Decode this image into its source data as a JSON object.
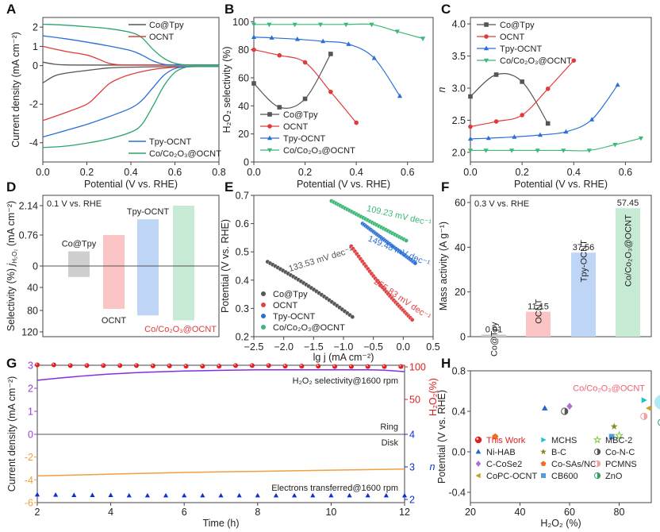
{
  "panel_labels": [
    "A",
    "B",
    "C",
    "D",
    "E",
    "F",
    "G",
    "H"
  ],
  "chart_data": [
    {
      "id": "A",
      "type": "line",
      "title": "",
      "xlabel": "Potential (V vs. RHE)",
      "ylabel": "Current density (mA cm⁻²)",
      "xlim": [
        0,
        0.8
      ],
      "ylim": [
        -5,
        2.5
      ],
      "xticks": [
        "0.0",
        "0.2",
        "0.4",
        "0.6",
        "0.8"
      ],
      "yticks": [
        "-4",
        "-2",
        "0",
        "1",
        "2"
      ],
      "ytick_values": [
        -4,
        -2,
        0,
        1,
        2
      ],
      "xtick_values": [
        0,
        0.2,
        0.4,
        0.6,
        0.8
      ],
      "legend_top": [
        "Co@Tpy",
        "OCNT"
      ],
      "legend_bottom": [
        "Tpy-OCNT",
        "Co/Co₂O₃@OCNT"
      ],
      "series": [
        {
          "name": "Co@Tpy",
          "color": "#555555",
          "ring": {
            "x": [
              0,
              0.05,
              0.1,
              0.2,
              0.3,
              0.4,
              0.5,
              0.6,
              0.7,
              0.8
            ],
            "y": [
              0.18,
              0.08,
              0.04,
              0.03,
              0.03,
              0.03,
              0.03,
              0.03,
              0.03,
              0.03
            ]
          },
          "disk": {
            "x": [
              0,
              0.05,
              0.1,
              0.2,
              0.3,
              0.4,
              0.5,
              0.6,
              0.7,
              0.8
            ],
            "y": [
              -0.9,
              -0.55,
              -0.4,
              -0.25,
              -0.12,
              -0.08,
              -0.06,
              -0.05,
              -0.05,
              -0.05
            ]
          }
        },
        {
          "name": "OCNT",
          "color": "#e03b3b",
          "ring": {
            "x": [
              0,
              0.1,
              0.2,
              0.25,
              0.3,
              0.35,
              0.4,
              0.5,
              0.6,
              0.7,
              0.8
            ],
            "y": [
              1.0,
              0.75,
              0.55,
              0.35,
              0.12,
              0.04,
              0.03,
              0.03,
              0.03,
              0.03,
              0.03
            ]
          },
          "disk": {
            "x": [
              0,
              0.1,
              0.2,
              0.25,
              0.3,
              0.35,
              0.4,
              0.5,
              0.6,
              0.7,
              0.8
            ],
            "y": [
              -2.85,
              -2.45,
              -2.0,
              -1.5,
              -0.95,
              -0.65,
              -0.45,
              -0.2,
              -0.08,
              -0.05,
              -0.05
            ]
          }
        },
        {
          "name": "Tpy-OCNT",
          "color": "#2a6fd6",
          "ring": {
            "x": [
              0,
              0.1,
              0.2,
              0.3,
              0.4,
              0.45,
              0.5,
              0.55,
              0.6,
              0.7,
              0.8
            ],
            "y": [
              1.55,
              1.4,
              1.22,
              1.02,
              0.78,
              0.55,
              0.25,
              0.07,
              0.03,
              0.03,
              0.03
            ]
          },
          "disk": {
            "x": [
              0,
              0.1,
              0.2,
              0.3,
              0.4,
              0.45,
              0.5,
              0.55,
              0.6,
              0.65,
              0.7,
              0.8
            ],
            "y": [
              -3.7,
              -3.38,
              -3.05,
              -2.65,
              -2.2,
              -1.8,
              -1.15,
              -0.5,
              -0.15,
              -0.06,
              -0.05,
              -0.05
            ]
          }
        },
        {
          "name": "Co/Co₂O₃@OCNT",
          "color": "#2aa56a",
          "ring": {
            "x": [
              0,
              0.1,
              0.2,
              0.3,
              0.4,
              0.45,
              0.5,
              0.55,
              0.6,
              0.65,
              0.7,
              0.8
            ],
            "y": [
              2.15,
              2.1,
              2.02,
              1.92,
              1.72,
              1.45,
              0.85,
              0.38,
              0.12,
              0.04,
              0.03,
              0.03
            ]
          },
          "disk": {
            "x": [
              0,
              0.1,
              0.2,
              0.3,
              0.4,
              0.45,
              0.5,
              0.55,
              0.6,
              0.65,
              0.7,
              0.8
            ],
            "y": [
              -4.25,
              -4.18,
              -4.02,
              -3.8,
              -3.45,
              -3.05,
              -2.1,
              -1.05,
              -0.35,
              -0.08,
              -0.05,
              -0.05
            ]
          }
        }
      ]
    },
    {
      "id": "B",
      "type": "line",
      "xlabel": "Potential (V vs. RHE)",
      "ylabel": "H₂O₂ selectivity (%)",
      "xlim": [
        0,
        0.7
      ],
      "ylim": [
        0,
        103
      ],
      "xticks": [
        "0.0",
        "0.2",
        "0.4",
        "0.6"
      ],
      "xtick_values": [
        0,
        0.2,
        0.4,
        0.6
      ],
      "yticks": [
        "0",
        "20",
        "40",
        "60",
        "80",
        "100"
      ],
      "ytick_values": [
        0,
        20,
        40,
        60,
        80,
        100
      ],
      "legend": "bottom-left",
      "series": [
        {
          "name": "Co@Tpy",
          "color": "#555555",
          "marker": "square",
          "x": [
            0,
            0.1,
            0.2,
            0.3
          ],
          "y": [
            56,
            39,
            45,
            77
          ]
        },
        {
          "name": "OCNT",
          "color": "#e03b3b",
          "marker": "circle",
          "x": [
            0,
            0.1,
            0.2,
            0.3,
            0.4
          ],
          "y": [
            80,
            76,
            71,
            50,
            28
          ]
        },
        {
          "name": "Tpy-OCNT",
          "color": "#2a6fd6",
          "marker": "triangle-up",
          "x": [
            0,
            0.07,
            0.17,
            0.27,
            0.37,
            0.47,
            0.57
          ],
          "y": [
            89,
            88.5,
            87.5,
            86,
            84,
            74,
            47
          ]
        },
        {
          "name": "Co/Co₂O₃@OCNT",
          "color": "#3cb878",
          "marker": "triangle-down",
          "x": [
            0,
            0.06,
            0.16,
            0.26,
            0.36,
            0.46,
            0.56,
            0.66
          ],
          "y": [
            98,
            98,
            98,
            98,
            98,
            98,
            93,
            88
          ]
        }
      ]
    },
    {
      "id": "C",
      "type": "line",
      "xlabel": "Potential (V vs. RHE)",
      "ylabel": "n",
      "xlim": [
        0,
        0.7
      ],
      "ylim": [
        1.85,
        4.1
      ],
      "xticks": [
        "0.0",
        "0.2",
        "0.4",
        "0.6"
      ],
      "xtick_values": [
        0,
        0.2,
        0.4,
        0.6
      ],
      "yticks": [
        "2.0",
        "2.5",
        "3.0",
        "3.5",
        "4.0"
      ],
      "ytick_values": [
        2.0,
        2.5,
        3.0,
        3.5,
        4.0
      ],
      "legend": "top-left",
      "series": [
        {
          "name": "Co@Tpy",
          "color": "#555555",
          "marker": "square",
          "x": [
            0,
            0.1,
            0.2,
            0.3
          ],
          "y": [
            2.87,
            3.21,
            3.1,
            2.45
          ]
        },
        {
          "name": "OCNT",
          "color": "#e03b3b",
          "marker": "circle",
          "x": [
            0,
            0.1,
            0.2,
            0.3,
            0.4
          ],
          "y": [
            2.4,
            2.48,
            2.58,
            2.99,
            3.43
          ]
        },
        {
          "name": "Tpy-OCNT",
          "color": "#2a6fd6",
          "marker": "triangle-up",
          "x": [
            0,
            0.07,
            0.17,
            0.27,
            0.37,
            0.47,
            0.57
          ],
          "y": [
            2.21,
            2.22,
            2.24,
            2.27,
            2.32,
            2.51,
            3.05
          ]
        },
        {
          "name": "Co/Co₂O₃@OCNT",
          "color": "#3cb878",
          "marker": "triangle-down",
          "x": [
            0,
            0.06,
            0.16,
            0.26,
            0.36,
            0.46,
            0.56,
            0.66
          ],
          "y": [
            2.03,
            2.03,
            2.03,
            2.03,
            2.03,
            2.03,
            2.12,
            2.22
          ]
        }
      ]
    },
    {
      "id": "D",
      "type": "bar",
      "annotation": "0.1 V vs. RHE",
      "ylabel_top": "j",
      "ylabel_top_sub": "H₂O₂",
      "ylabel_top_unit": "(mA cm⁻²)",
      "ylabel_bottom": "Selectivity (%)",
      "yticks_top": [
        "2.14",
        "0.76",
        "0"
      ],
      "yticks_bottom": [
        "40",
        "80",
        "120"
      ],
      "categories": [
        "Co@Tpy",
        "OCNT",
        "Tpy-OCNT",
        "Co/Co₂O₃@OCNT"
      ],
      "current_density": [
        0.36,
        0.76,
        1.5,
        2.14
      ],
      "selectivity": [
        20,
        78,
        90,
        99
      ],
      "colors": [
        "#cfcfcf",
        "#fbc5c5",
        "#bed5f5",
        "#c6ead4"
      ],
      "label_colors": [
        "#222222",
        "#222222",
        "#222222",
        "#e03b3b"
      ]
    },
    {
      "id": "E",
      "type": "scatter",
      "xlabel": "lg j (mA cm⁻²)",
      "ylabel": "Potential (V vs. RHE)",
      "xlim": [
        -2.5,
        0.5
      ],
      "ylim": [
        0.2,
        0.7
      ],
      "xticks": [
        "−2.5",
        "−2.0",
        "−1.5",
        "−1.0",
        "−0.5",
        "0.0",
        "0.5"
      ],
      "xtick_values": [
        -2.5,
        -2.0,
        -1.5,
        -1.0,
        -0.5,
        0.0,
        0.5
      ],
      "yticks": [
        "0.2",
        "0.3",
        "0.4",
        "0.5",
        "0.6",
        "0.7"
      ],
      "ytick_values": [
        0.2,
        0.3,
        0.4,
        0.5,
        0.6,
        0.7
      ],
      "legend": "bottom-left",
      "series": [
        {
          "name": "Co@Tpy",
          "color": "#555555",
          "x_start": -2.27,
          "y_start": 0.465,
          "x_end": -0.85,
          "y_end": 0.27,
          "tafel": "133.53 mV dec⁻¹"
        },
        {
          "name": "OCNT",
          "color": "#e04444",
          "x_start": -0.87,
          "y_start": 0.52,
          "x_end": 0.15,
          "y_end": 0.26,
          "tafel": "255.83 mV dec⁻¹"
        },
        {
          "name": "Tpy-OCNT",
          "color": "#2a6fd6",
          "x_start": -0.68,
          "y_start": 0.6,
          "x_end": 0.2,
          "y_end": 0.46,
          "tafel": "149.48 mV dec⁻¹"
        },
        {
          "name": "Co/Co₂O₃@OCNT",
          "color": "#3cb878",
          "x_start": -1.2,
          "y_start": 0.68,
          "x_end": 0.05,
          "y_end": 0.54,
          "tafel": "109.23 mV dec⁻¹"
        }
      ]
    },
    {
      "id": "F",
      "type": "bar",
      "annotation": "0.3 V vs. RHE",
      "ylabel": "Mass activity (A g⁻¹)",
      "ylim": [
        0,
        62.5
      ],
      "yticks": [
        "0",
        "20",
        "40",
        "60"
      ],
      "ytick_values": [
        0,
        20,
        40,
        60
      ],
      "categories": [
        "Co@Tpy",
        "OCNT",
        "Tpy-OCNT",
        "Co/Co₂O₃@OCNT"
      ],
      "values": [
        0.91,
        11.15,
        37.56,
        57.45
      ],
      "value_labels": [
        "0.91",
        "11.15",
        "37.56",
        "57.45"
      ],
      "colors": [
        "#c8c8c8",
        "#fbc5c5",
        "#bed5f5",
        "#c6ead4"
      ]
    },
    {
      "id": "G",
      "type": "line",
      "xlabel": "Time (h)",
      "ylabel_left": "Current density (mA cm⁻²)",
      "ylabel_right_top": "H₂O₂(%)",
      "ylabel_right_bottom": "n",
      "xlim": [
        2,
        12
      ],
      "ylim_left": [
        -6,
        3
      ],
      "xticks": [
        "2",
        "4",
        "6",
        "8",
        "10",
        "12"
      ],
      "xtick_values": [
        2,
        4,
        6,
        8,
        10,
        12
      ],
      "yticks_left": [
        "3",
        "2",
        "1",
        "0",
        "-2",
        "-4",
        "-6"
      ],
      "ytick_left_values": [
        3,
        2,
        1,
        0,
        -2,
        -4,
        -6
      ],
      "yticks_left_colors": [
        "#9a3de0",
        "#9a3de0",
        "#9a3de0",
        "#9a3de0",
        "#f0a040",
        "#f0a040",
        "#f0a040"
      ],
      "yticks_right_top": [
        "100",
        "50"
      ],
      "yticks_right_bottom": [
        "4",
        "3",
        "2"
      ],
      "annotations": [
        "H₂O₂ selectivity@1600 rpm",
        "Ring",
        "Disk",
        "Electrons transferred@1600 rpm"
      ],
      "ring_current": {
        "color": "#8a2be2",
        "x": [
          2,
          3,
          4,
          5,
          6,
          7,
          8,
          9,
          10,
          11,
          11.5,
          12
        ],
        "y": [
          2.35,
          2.5,
          2.62,
          2.7,
          2.75,
          2.78,
          2.8,
          2.8,
          2.8,
          2.8,
          2.78,
          2.72
        ]
      },
      "disk_current": {
        "color": "#f0a040",
        "x": [
          2,
          4,
          6,
          8,
          10,
          12
        ],
        "y": [
          -3.65,
          -3.5,
          -3.35,
          -3.25,
          -3.15,
          -3.05
        ]
      },
      "selectivity_points": {
        "color": "#e02020",
        "x": [
          2,
          2.45,
          2.9,
          3.35,
          3.8,
          4.25,
          4.7,
          5.15,
          5.6,
          6.05,
          6.5,
          6.95,
          7.4,
          7.85,
          8.3,
          8.75,
          9.2,
          9.65,
          10.1,
          10.55,
          11.0,
          11.45,
          11.9
        ],
        "y_percent": [
          97,
          97,
          98,
          98,
          98,
          98,
          98,
          98.5,
          98.5,
          99,
          99,
          99,
          98,
          98,
          98,
          99,
          99,
          99,
          99.5,
          99.5,
          99.5,
          99.5,
          99.5
        ]
      },
      "n_points": {
        "color": "#1030d0",
        "x": [
          2,
          2.5,
          3,
          3.5,
          4,
          4.5,
          5,
          5.5,
          6,
          6.5,
          7,
          7.5,
          8,
          8.5,
          9,
          9.5,
          10,
          10.5,
          11,
          11.5,
          12
        ],
        "y": [
          2.05,
          2.04,
          2.03,
          2.03,
          2.03,
          2.02,
          2.02,
          2.02,
          2.02,
          2.02,
          2.02,
          2.02,
          2.02,
          2.02,
          2.02,
          2.02,
          2.02,
          2.02,
          2.02,
          2.02,
          2.02
        ]
      }
    },
    {
      "id": "H",
      "type": "scatter",
      "xlabel": "H₂O₂ (%)",
      "ylabel": "Potential (V vs. RHE)",
      "xlim": [
        20,
        105
      ],
      "ylim": [
        -0.5,
        0.85
      ],
      "xticks": [
        "20",
        "40",
        "60",
        "80",
        "100"
      ],
      "xtick_values": [
        20,
        40,
        60,
        80,
        100
      ],
      "yticks": [
        "-0.4",
        "0.0",
        "0.4",
        "0.8"
      ],
      "ytick_values": [
        -0.4,
        0.0,
        0.4,
        0.8
      ],
      "highlight_label": "Co/Co₂O₃@OCNT",
      "points": [
        {
          "name": "This Work",
          "x": 98,
          "y": 0.49,
          "marker": "sphere",
          "color": "#e02020",
          "label_color": "#e02020"
        },
        {
          "name": "Ni-HAB",
          "x": 50,
          "y": 0.43,
          "marker": "triangle-up",
          "color": "#2266cc"
        },
        {
          "name": "C-CoSe2",
          "x": 60,
          "y": 0.45,
          "marker": "diamond",
          "color": "#b070d8"
        },
        {
          "name": "CoPC-OCNT",
          "x": 92,
          "y": 0.43,
          "marker": "triangle-left",
          "color": "#c8a020"
        },
        {
          "name": "MCHS",
          "x": 90,
          "y": 0.51,
          "marker": "triangle-right",
          "color": "#20c0c8"
        },
        {
          "name": "B-C",
          "x": 78,
          "y": 0.25,
          "marker": "star",
          "color": "#8a8a20"
        },
        {
          "name": "Co-SAs/NC",
          "x": 30,
          "y": 0.15,
          "marker": "pentagon",
          "color": "#f07020"
        },
        {
          "name": "CB600",
          "x": 77,
          "y": 0.15,
          "marker": "square",
          "color": "#5a9ad8"
        },
        {
          "name": "MBC-2",
          "x": 80,
          "y": 0.16,
          "marker": "star-open",
          "color": "#80c840"
        },
        {
          "name": "Co-N-C",
          "x": 58,
          "y": 0.4,
          "marker": "half-circle",
          "color": "#555555"
        },
        {
          "name": "PCMNS",
          "x": 90,
          "y": 0.35,
          "marker": "half-circle",
          "color": "#f0a0a0"
        },
        {
          "name": "ZnO",
          "x": 97,
          "y": 0.29,
          "marker": "half-circle",
          "color": "#30a060"
        }
      ]
    }
  ]
}
